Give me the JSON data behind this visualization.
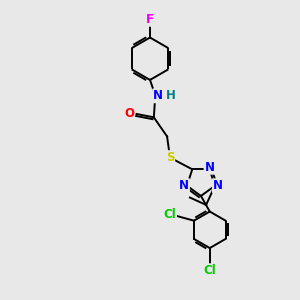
{
  "bg_color": "#e8e8e8",
  "bond_color": "#000000",
  "atom_colors": {
    "F": "#ee00ee",
    "N": "#0000ff",
    "H": "#008080",
    "O": "#ff0000",
    "S": "#cccc00",
    "Cl": "#00cc00",
    "C": "#000000"
  },
  "font_size": 8.5,
  "lw": 1.4
}
